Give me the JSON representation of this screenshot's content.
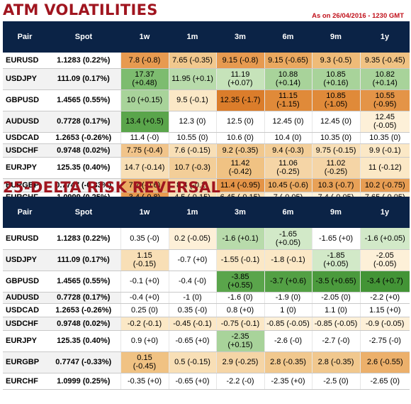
{
  "atm": {
    "title": "ATM VOLATILITIES",
    "as_of": "As on 26/04/2016 - 1230 GMT",
    "headers": [
      "Pair",
      "Spot",
      "1w",
      "1m",
      "3m",
      "6m",
      "9m",
      "1y"
    ],
    "rows": [
      {
        "pair": "EURUSD",
        "spot": "1.1283 (0.22%)",
        "cells": [
          {
            "text": "7.8 (-0.8)",
            "color": "#e79a50"
          },
          {
            "text": "7.65 (-0.35)",
            "color": "#f1c88e"
          },
          {
            "text": "9.15 (-0.8)",
            "color": "#e79a50"
          },
          {
            "text": "9.15 (-0.65)",
            "color": "#eaa85f"
          },
          {
            "text": "9.3 (-0.5)",
            "color": "#efbb78"
          },
          {
            "text": "9.35 (-0.45)",
            "color": "#f0c283"
          }
        ]
      },
      {
        "pair": "USDJPY",
        "spot": "111.09 (0.17%)",
        "cells": [
          {
            "text": "17.37\n(+0.48)",
            "color": "#7dbc6f"
          },
          {
            "text": "11.95 (+0.1)",
            "color": "#b8dbab"
          },
          {
            "text": "11.19\n(+0.07)",
            "color": "#c6e3ba"
          },
          {
            "text": "10.88\n(+0.14)",
            "color": "#a8d39a"
          },
          {
            "text": "10.85\n(+0.16)",
            "color": "#a8d39a"
          },
          {
            "text": "10.82\n(+0.14)",
            "color": "#a8d39a"
          }
        ]
      },
      {
        "pair": "GBPUSD",
        "spot": "1.4565 (0.55%)",
        "cells": [
          {
            "text": "10 (+0.15)",
            "color": "#a8d39a"
          },
          {
            "text": "9.5 (-0.1)",
            "color": "#fbe8c6"
          },
          {
            "text": "12.35 (-1.7)",
            "color": "#db7d2b"
          },
          {
            "text": "11.15\n(-1.15)",
            "color": "#e08a39"
          },
          {
            "text": "10.85\n(-1.05)",
            "color": "#e08a39"
          },
          {
            "text": "10.55\n(-0.95)",
            "color": "#e49447"
          }
        ]
      },
      {
        "pair": "AUDUSD",
        "spot": "0.7728 (0.17%)",
        "cells": [
          {
            "text": "13.4 (+0.5)",
            "color": "#5aa54b"
          },
          {
            "text": "12.3 (0)",
            "color": "#ffffff"
          },
          {
            "text": "12.5 (0)",
            "color": "#ffffff"
          },
          {
            "text": "12.45 (0)",
            "color": "#ffffff"
          },
          {
            "text": "12.45 (0)",
            "color": "#ffffff"
          },
          {
            "text": "12.45\n(-0.05)",
            "color": "#fdf0d8"
          }
        ]
      },
      {
        "pair": "USDCAD",
        "spot": "1.2653 (-0.26%)",
        "cells": [
          {
            "text": "11.4 (-0)",
            "color": "#ffffff"
          },
          {
            "text": "10.55 (0)",
            "color": "#ffffff"
          },
          {
            "text": "10.6 (0)",
            "color": "#ffffff"
          },
          {
            "text": "10.4 (0)",
            "color": "#ffffff"
          },
          {
            "text": "10.35 (0)",
            "color": "#ffffff"
          },
          {
            "text": "10.35 (0)",
            "color": "#ffffff"
          }
        ]
      },
      {
        "pair": "USDCHF",
        "spot": "0.9748 (0.02%)",
        "cells": [
          {
            "text": "7.75 (-0.4)",
            "color": "#f1c48a"
          },
          {
            "text": "7.6 (-0.15)",
            "color": "#f8dfb6"
          },
          {
            "text": "9.2 (-0.35)",
            "color": "#f1c88e"
          },
          {
            "text": "9.4 (-0.3)",
            "color": "#f3ce98"
          },
          {
            "text": "9.75 (-0.15)",
            "color": "#f8dfb6"
          },
          {
            "text": "9.9 (-0.1)",
            "color": "#fbe8c6"
          }
        ]
      },
      {
        "pair": "EURJPY",
        "spot": "125.35 (0.40%)",
        "cells": [
          {
            "text": "14.7 (-0.14)",
            "color": "#f8dfb6"
          },
          {
            "text": "10.7 (-0.3)",
            "color": "#f3ce98"
          },
          {
            "text": "11.42\n(-0.42)",
            "color": "#f0c283"
          },
          {
            "text": "11.06\n(-0.25)",
            "color": "#f5d5a6"
          },
          {
            "text": "11.02\n(-0.25)",
            "color": "#f5d5a6"
          },
          {
            "text": "11 (-0.12)",
            "color": "#fbe8c6"
          }
        ]
      },
      {
        "pair": "EURGBP",
        "spot": "0.7747 (-0.33%)",
        "cells": [
          {
            "text": "7.7 (-0.6)",
            "color": "#ebab63"
          },
          {
            "text": "8.4 (-0.2)",
            "color": "#f6d8ab"
          },
          {
            "text": "11.4 (-0.95)",
            "color": "#e49447"
          },
          {
            "text": "10.45 (-0.6)",
            "color": "#ebab63"
          },
          {
            "text": "10.3 (-0.7)",
            "color": "#e8a157"
          },
          {
            "text": "10.2 (-0.75)",
            "color": "#e79d53"
          }
        ]
      },
      {
        "pair": "EURCHF",
        "spot": "1.0999 (0.25%)",
        "cells": [
          {
            "text": "3.4 (-0.8)",
            "color": "#e79a50"
          },
          {
            "text": "4.5 (-0.15)",
            "color": "#f8dfb6"
          },
          {
            "text": "6.45 (-0.15)",
            "color": "#f8dfb6"
          },
          {
            "text": "7 (-0.05)",
            "color": "#fdf0d8"
          },
          {
            "text": "7.4 (-0.05)",
            "color": "#fdf0d8"
          },
          {
            "text": "7.65 (-0.05)",
            "color": "#fdf0d8"
          }
        ]
      }
    ]
  },
  "rr": {
    "title": "25-DELTA RISK REVERSAL",
    "headers": [
      "Pair",
      "Spot",
      "1w",
      "1m",
      "3m",
      "6m",
      "9m",
      "1y"
    ],
    "rows": [
      {
        "pair": "EURUSD",
        "spot": "1.1283 (0.22%)",
        "cells": [
          {
            "text": "0.35 (-0)",
            "color": "#ffffff"
          },
          {
            "text": "0.2 (-0.05)",
            "color": "#fdf0d8"
          },
          {
            "text": "-1.6 (+0.1)",
            "color": "#b8dbab"
          },
          {
            "text": "-1.65\n(+0.05)",
            "color": "#d2e9c8"
          },
          {
            "text": "-1.65 (+0)",
            "color": "#ffffff"
          },
          {
            "text": "-1.6 (+0.05)",
            "color": "#d2e9c8"
          }
        ]
      },
      {
        "pair": "USDJPY",
        "spot": "111.09 (0.17%)",
        "cells": [
          {
            "text": "1.15\n(-0.15)",
            "color": "#f8dfb6"
          },
          {
            "text": "-0.7 (+0)",
            "color": "#ffffff"
          },
          {
            "text": "-1.55 (-0.1)",
            "color": "#fbe8c6"
          },
          {
            "text": "-1.8 (-0.1)",
            "color": "#fbe8c6"
          },
          {
            "text": "-1.85\n(+0.05)",
            "color": "#d2e9c8"
          },
          {
            "text": "-2.05\n(-0.05)",
            "color": "#fdf0d8"
          }
        ]
      },
      {
        "pair": "GBPUSD",
        "spot": "1.4565 (0.55%)",
        "cells": [
          {
            "text": "-0.1 (+0)",
            "color": "#ffffff"
          },
          {
            "text": "-0.4 (-0)",
            "color": "#ffffff"
          },
          {
            "text": "-3.85\n(+0.55)",
            "color": "#5aa54b"
          },
          {
            "text": "-3.7 (+0.6)",
            "color": "#53a044"
          },
          {
            "text": "-3.5 (+0.65)",
            "color": "#4b9a3d"
          },
          {
            "text": "-3.4 (+0.7)",
            "color": "#439436"
          }
        ]
      },
      {
        "pair": "AUDUSD",
        "spot": "0.7728 (0.17%)",
        "cells": [
          {
            "text": "-0.4 (+0)",
            "color": "#ffffff"
          },
          {
            "text": "-1 (0)",
            "color": "#ffffff"
          },
          {
            "text": "-1.6 (0)",
            "color": "#ffffff"
          },
          {
            "text": "-1.9 (0)",
            "color": "#ffffff"
          },
          {
            "text": "-2.05 (0)",
            "color": "#ffffff"
          },
          {
            "text": "-2.2 (+0)",
            "color": "#ffffff"
          }
        ]
      },
      {
        "pair": "USDCAD",
        "spot": "1.2653 (-0.26%)",
        "cells": [
          {
            "text": "0.25 (0)",
            "color": "#ffffff"
          },
          {
            "text": "0.35 (-0)",
            "color": "#ffffff"
          },
          {
            "text": "0.8 (+0)",
            "color": "#ffffff"
          },
          {
            "text": "1 (0)",
            "color": "#ffffff"
          },
          {
            "text": "1.1 (0)",
            "color": "#ffffff"
          },
          {
            "text": "1.15 (+0)",
            "color": "#ffffff"
          }
        ]
      },
      {
        "pair": "USDCHF",
        "spot": "0.9748 (0.02%)",
        "cells": [
          {
            "text": "-0.2 (-0.1)",
            "color": "#fbe8c6"
          },
          {
            "text": "-0.45 (-0.1)",
            "color": "#fbe8c6"
          },
          {
            "text": "-0.75 (-0.1)",
            "color": "#fbe8c6"
          },
          {
            "text": "-0.85 (-0.05)",
            "color": "#fdf0d8"
          },
          {
            "text": "-0.85 (-0.05)",
            "color": "#fdf0d8"
          },
          {
            "text": "-0.9 (-0.05)",
            "color": "#fdf0d8"
          }
        ]
      },
      {
        "pair": "EURJPY",
        "spot": "125.35 (0.40%)",
        "cells": [
          {
            "text": "0.9 (+0)",
            "color": "#ffffff"
          },
          {
            "text": "-0.65 (+0)",
            "color": "#ffffff"
          },
          {
            "text": "-2.35\n(+0.15)",
            "color": "#a8d39a"
          },
          {
            "text": "-2.6 (-0)",
            "color": "#ffffff"
          },
          {
            "text": "-2.7 (-0)",
            "color": "#ffffff"
          },
          {
            "text": "-2.75 (-0)",
            "color": "#ffffff"
          }
        ]
      },
      {
        "pair": "EURGBP",
        "spot": "0.7747 (-0.33%)",
        "cells": [
          {
            "text": "0.15\n(-0.45)",
            "color": "#f0c283"
          },
          {
            "text": "0.5 (-0.15)",
            "color": "#f8dfb6"
          },
          {
            "text": "2.9 (-0.25)",
            "color": "#f5d5a6"
          },
          {
            "text": "2.8 (-0.35)",
            "color": "#f1c88e"
          },
          {
            "text": "2.8 (-0.35)",
            "color": "#f1c88e"
          },
          {
            "text": "2.6 (-0.55)",
            "color": "#ecb06b"
          }
        ]
      },
      {
        "pair": "EURCHF",
        "spot": "1.0999 (0.25%)",
        "cells": [
          {
            "text": "-0.35 (+0)",
            "color": "#ffffff"
          },
          {
            "text": "-0.65 (+0)",
            "color": "#ffffff"
          },
          {
            "text": "-2.2 (-0)",
            "color": "#ffffff"
          },
          {
            "text": "-2.35 (+0)",
            "color": "#ffffff"
          },
          {
            "text": "-2.5 (0)",
            "color": "#ffffff"
          },
          {
            "text": "-2.65 (0)",
            "color": "#ffffff"
          }
        ]
      }
    ]
  }
}
